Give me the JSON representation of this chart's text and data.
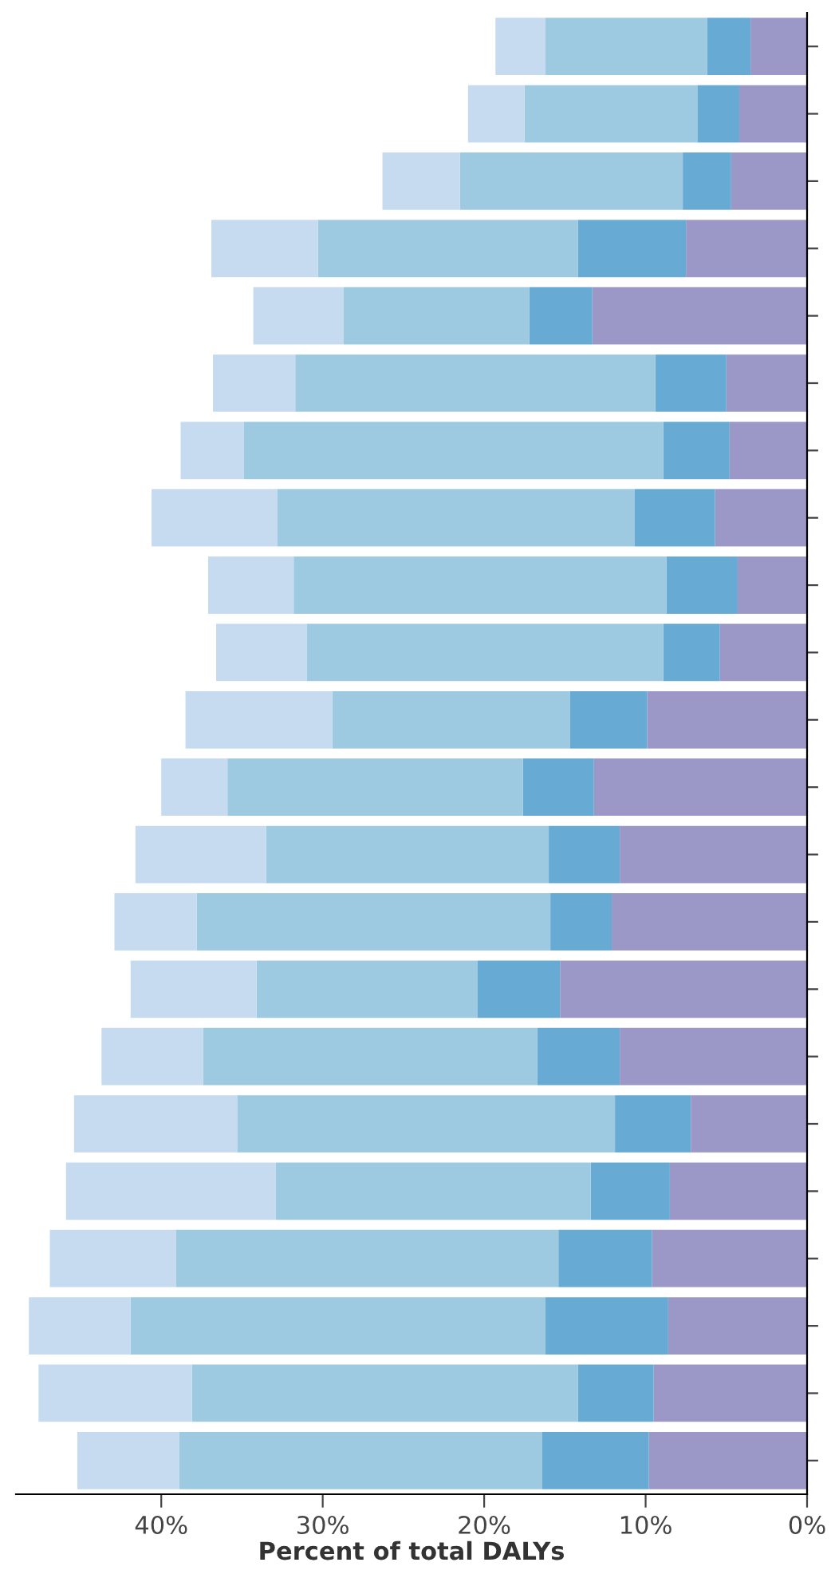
{
  "chart_data": {
    "type": "bar",
    "orientation": "horizontal",
    "stacked": true,
    "xlabel": "Percent of total DALYs",
    "categories": [
      null,
      null,
      null,
      null,
      null,
      null,
      null,
      null,
      null,
      null,
      null,
      null,
      null,
      null,
      null,
      null,
      null,
      null,
      null,
      null,
      null,
      null
    ],
    "xlim": [
      49,
      0
    ],
    "xticks": [
      {
        "value": 40,
        "label": "40%"
      },
      {
        "value": 30,
        "label": "30%"
      },
      {
        "value": 20,
        "label": "20%"
      },
      {
        "value": 10,
        "label": "10%"
      },
      {
        "value": 0,
        "label": "0%"
      }
    ],
    "grid": false,
    "legend": false,
    "series": [
      {
        "color": "#9b97c6",
        "values": [
          3.5,
          4.2,
          4.7,
          7.5,
          13.3,
          5.0,
          4.8,
          5.7,
          4.3,
          5.4,
          9.9,
          13.2,
          11.6,
          12.1,
          15.3,
          11.6,
          7.2,
          8.5,
          9.6,
          8.6,
          9.5,
          9.8
        ]
      },
      {
        "color": "#67aad4",
        "values": [
          2.7,
          2.6,
          3.0,
          6.7,
          3.9,
          4.4,
          4.1,
          5.0,
          4.4,
          3.5,
          4.8,
          4.4,
          4.4,
          3.8,
          5.1,
          5.1,
          4.7,
          4.9,
          5.8,
          7.6,
          4.7,
          6.6
        ]
      },
      {
        "color": "#9ecae1",
        "values": [
          10.0,
          10.7,
          13.8,
          16.1,
          11.5,
          22.3,
          26.0,
          22.1,
          23.1,
          22.1,
          14.7,
          18.3,
          17.5,
          21.9,
          13.7,
          20.7,
          23.4,
          19.5,
          23.7,
          25.7,
          23.9,
          22.5
        ]
      },
      {
        "color": "#c6dbef",
        "values": [
          3.1,
          3.5,
          4.8,
          6.6,
          5.6,
          5.1,
          3.9,
          7.8,
          5.3,
          5.6,
          9.1,
          4.1,
          8.1,
          5.1,
          7.8,
          6.3,
          10.1,
          13.0,
          7.8,
          6.3,
          9.5,
          6.3
        ]
      }
    ]
  }
}
